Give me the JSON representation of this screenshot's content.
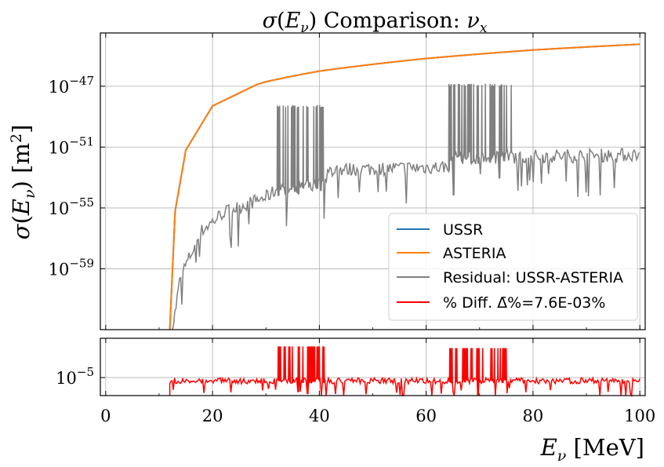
{
  "chart_data": [
    {
      "type": "line",
      "title": "σ(Eν) Comparison: νx",
      "xlabel": "",
      "ylabel": "σ(Eν) [m²]",
      "yscale": "log",
      "xlim": [
        -1,
        101
      ],
      "ylim_exp": [
        -63,
        -43.5
      ],
      "x_ticks": [
        0,
        20,
        40,
        60,
        80,
        100
      ],
      "y_tick_labels": [
        "10−47",
        "10−51",
        "10−55",
        "10−59"
      ],
      "y_tick_exps": [
        -47,
        -51,
        -55,
        -59
      ],
      "grid": true,
      "legend_placement": "lower-right",
      "series": [
        {
          "name": "USSR",
          "color": "#1f77b4",
          "description_points_log10": [
            [
              12.0,
              -63
            ],
            [
              13.0,
              -55.2
            ],
            [
              15,
              -51.2
            ],
            [
              20,
              -48.3
            ],
            [
              30,
              -46.6
            ],
            [
              40,
              -45.7
            ],
            [
              60,
              -44.8
            ],
            [
              80,
              -44.2
            ],
            [
              100,
              -43.9
            ]
          ]
        },
        {
          "name": "ASTERIA",
          "color": "#ff7f0e",
          "description_points_log10": [
            [
              12.0,
              -63
            ],
            [
              13.0,
              -55.2
            ],
            [
              15,
              -51.2
            ],
            [
              20,
              -48.3
            ],
            [
              30,
              -46.6
            ],
            [
              40,
              -45.7
            ],
            [
              60,
              -44.8
            ],
            [
              80,
              -44.2
            ],
            [
              100,
              -43.9
            ]
          ]
        },
        {
          "name": "Residual: USSR-ASTERIA",
          "color": "#808080",
          "description_points_log10": [
            [
              12.5,
              -63
            ],
            [
              14,
              -59.5
            ],
            [
              18,
              -56.5
            ],
            [
              22,
              -55.3
            ],
            [
              30,
              -54.3
            ],
            [
              32,
              -53.8
            ],
            [
              41,
              -53.4
            ],
            [
              42,
              -52.5
            ],
            [
              64,
              -52.3
            ],
            [
              65,
              -51.7
            ],
            [
              100,
              -51.5
            ]
          ],
          "spike_bands": [
            [
              32,
              41,
              -48.3
            ],
            [
              64,
              76,
              -46.9
            ]
          ]
        }
      ]
    },
    {
      "type": "line",
      "xlabel": "Eν [MeV]",
      "ylabel": "",
      "yscale": "log",
      "xlim": [
        -1,
        101
      ],
      "x_ticks": [
        0,
        20,
        40,
        60,
        80,
        100
      ],
      "x_tick_labels": [
        "0",
        "20",
        "40",
        "60",
        "80",
        "100"
      ],
      "y_tick_labels": [
        "10−5"
      ],
      "series": [
        {
          "name": "% Diff. Δ̄%=7.6E-03%",
          "color": "#ff0000",
          "baseline_exp": -5.1,
          "spike_bands": [
            [
              32,
              41,
              -4.05
            ],
            [
              64,
              76,
              -4.1
            ]
          ],
          "x_start": 12
        }
      ]
    }
  ],
  "labels": {
    "title_sigma": "σ(Eν)",
    "title_rest": " Comparison: νx",
    "ylabel": "σ(Eν) [m²]",
    "xlabel": "Eν [MeV]"
  }
}
